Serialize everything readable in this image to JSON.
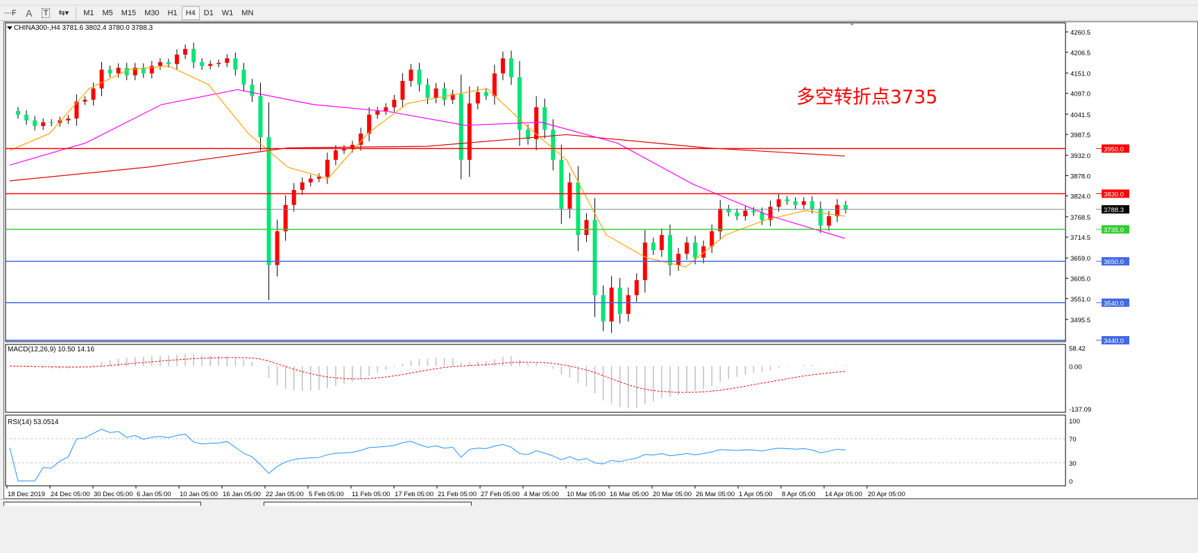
{
  "toolbar": {
    "tools": [
      {
        "label": "⋯F",
        "icon": "period-separator-icon"
      },
      {
        "label": "A",
        "icon": "text-icon"
      },
      {
        "label": "T",
        "icon": "text-label-icon"
      },
      {
        "label": "⇆▾",
        "icon": "arrows-icon"
      }
    ],
    "timeframes": [
      "M1",
      "M5",
      "M15",
      "M30",
      "H1",
      "H4",
      "D1",
      "W1",
      "MN"
    ],
    "active_timeframe": "H4"
  },
  "chart": {
    "header": "CHINA300-,H4  3781.6 3802.4 3780.0 3788.3",
    "annotation": "多空转折点3735",
    "price_ticks": [
      "4260.5",
      "4206.5",
      "4151.0",
      "4097.0",
      "4041.5",
      "3987.5",
      "3932.0",
      "3878.0",
      "3824.0",
      "3768.5",
      "3714.5",
      "3659.0",
      "3605.0",
      "3551.0",
      "3495.5"
    ],
    "levels": [
      {
        "label": "3950.0",
        "value": 3950,
        "color": "#ff0000"
      },
      {
        "label": "3830.0",
        "value": 3830,
        "color": "#ff0000"
      },
      {
        "label": "3788.3",
        "value": 3788.3,
        "color": "#000000",
        "line": "#778899"
      },
      {
        "label": "3735.0",
        "value": 3735,
        "color": "#32cd32"
      },
      {
        "label": "3650.0",
        "value": 3650,
        "color": "#4169e1"
      },
      {
        "label": "3540.0",
        "value": 3540,
        "color": "#4169e1"
      },
      {
        "label": "3440.0",
        "value": 3440,
        "color": "#4169e1"
      }
    ],
    "macd_label": "MACD(12,26,9) 10.50 14.16",
    "macd_ticks": [
      "58.42",
      "0.00",
      "-137.09"
    ],
    "rsi_label": "RSI(14) 53.0514",
    "rsi_ticks": [
      "100",
      "70",
      "30",
      "0"
    ],
    "time_labels": [
      "18 Dec 2019",
      "24 Dec 05:00",
      "30 Dec 05:00",
      "6 Jan 05:00",
      "10 Jan 05:00",
      "16 Jan 05:00",
      "22 Jan 05:00",
      "5 Feb 05:00",
      "11 Feb 05:00",
      "17 Feb 05:00",
      "21 Feb 05:00",
      "27 Feb 05:00",
      "4 Mar 05:00",
      "10 Mar 05:00",
      "16 Mar 05:00",
      "20 Mar 05:00",
      "26 Mar 05:00",
      "1 Apr 05:00",
      "8 Apr 05:00",
      "14 Apr 05:00",
      "20 Apr 05:00"
    ],
    "colors": {
      "up": "#ff0000",
      "down": "#00e676",
      "ma_fast": "#ffa500",
      "ma_mid": "#ff00ff",
      "ma_slow": "#e00000",
      "rsi": "#1e90ff",
      "macd_hist": "#c0c0c0",
      "macd_signal": "#ff0000",
      "annotation": "#ff0000"
    }
  },
  "chart_data": {
    "type": "candlestick",
    "symbol": "CHINA300-",
    "timeframe": "H4",
    "ylim": [
      3440,
      4260.5
    ],
    "close": [
      4050,
      4040,
      4025,
      4010,
      4020,
      4018,
      4025,
      4030,
      4075,
      4080,
      4110,
      4160,
      4150,
      4165,
      4145,
      4165,
      4150,
      4170,
      4180,
      4175,
      4200,
      4215,
      4180,
      4170,
      4175,
      4178,
      4190,
      4160,
      4120,
      4090,
      3980,
      3640,
      3730,
      3800,
      3840,
      3860,
      3870,
      3875,
      3920,
      3945,
      3950,
      3960,
      3990,
      4040,
      4050,
      4060,
      4080,
      4130,
      4160,
      4120,
      4085,
      4110,
      4080,
      4095,
      3920,
      4070,
      4100,
      4090,
      4150,
      4190,
      4140,
      4000,
      3975,
      4060,
      4000,
      3920,
      3790,
      3860,
      3720,
      3760,
      3560,
      3490,
      3580,
      3510,
      3560,
      3600,
      3700,
      3680,
      3720,
      3640,
      3670,
      3700,
      3660,
      3690,
      3730,
      3790,
      3780,
      3770,
      3785,
      3780,
      3760,
      3795,
      3815,
      3810,
      3800,
      3810,
      3790,
      3745,
      3770,
      3800,
      3788.3
    ],
    "ma_fast": [
      3945,
      3990,
      4110,
      4160,
      4170,
      4120,
      3990,
      3900,
      3870,
      3990,
      4070,
      4090,
      4110,
      4010,
      3920,
      3720,
      3660,
      3635,
      3720,
      3760,
      3785,
      3770
    ],
    "ma_mid": [
      3906,
      3965,
      4067,
      4107,
      4067,
      4048,
      4012,
      4020,
      3965,
      3855,
      3772,
      3711
    ],
    "ma_slow": [
      3864,
      3901,
      3952,
      3956,
      3987,
      3952,
      3930
    ],
    "rsi_levels": [
      70,
      30
    ],
    "macd_range": [
      -137.09,
      58.42
    ]
  }
}
